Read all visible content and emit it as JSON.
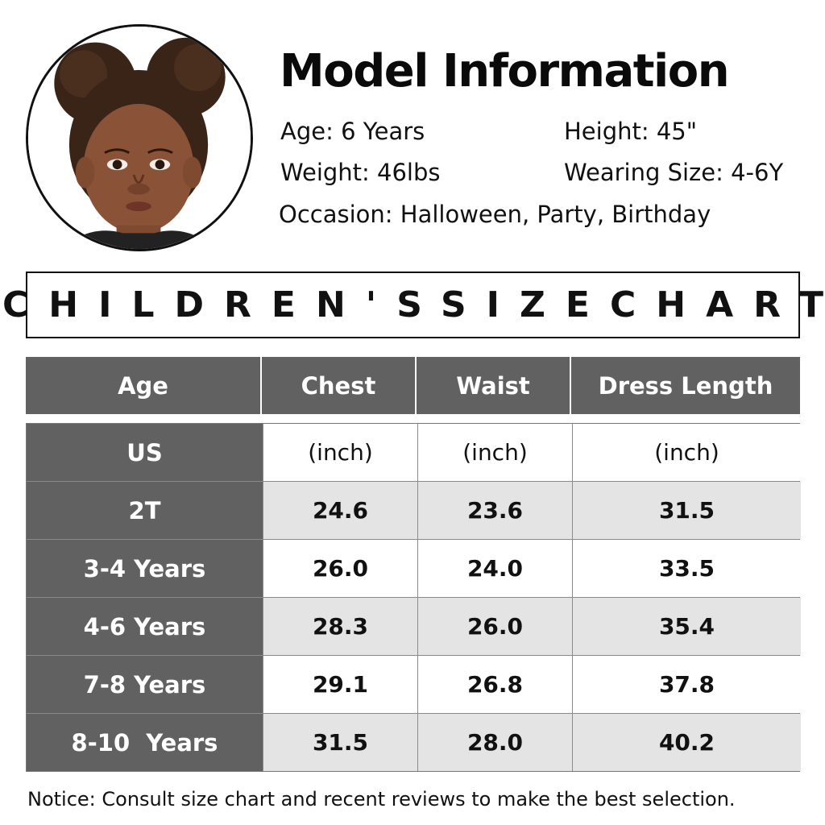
{
  "model": {
    "title": "Model Information",
    "age": "Age: 6 Years",
    "height": "Height: 45\"",
    "weight": "Weight: 46lbs",
    "wearing_size": "Wearing Size: 4-6Y",
    "occasion": "Occasion: Halloween, Party, Birthday"
  },
  "banner": {
    "title": "CHILDREN'SSIZECHART"
  },
  "table": {
    "headers": [
      "Age",
      "Chest",
      "Waist",
      "Dress Length"
    ],
    "units_row": {
      "label": "US",
      "values": [
        "(inch)",
        "(inch)",
        "(inch)"
      ]
    },
    "rows": [
      {
        "label": "2T",
        "values": [
          "24.6",
          "23.6",
          "31.5"
        ]
      },
      {
        "label": "3-4 Years",
        "values": [
          "26.0",
          "24.0",
          "33.5"
        ]
      },
      {
        "label": "4-6 Years",
        "values": [
          "28.3",
          "26.0",
          "35.4"
        ]
      },
      {
        "label": "7-8 Years",
        "values": [
          "29.1",
          "26.8",
          "37.8"
        ]
      },
      {
        "label": "8-10  Years",
        "values": [
          "31.5",
          "28.0",
          "40.2"
        ]
      }
    ]
  },
  "notice": "Notice: Consult size chart and recent reviews to make the best selection.",
  "colors": {
    "header_bg": "#616161",
    "shade_row": "#e4e4e4",
    "text": "#111111"
  }
}
